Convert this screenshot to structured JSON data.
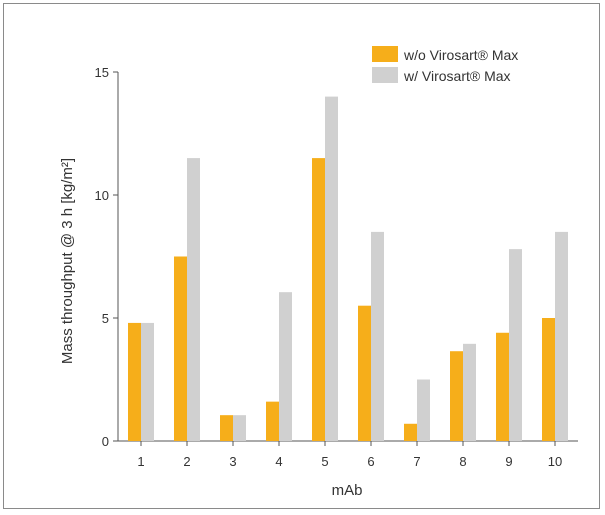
{
  "chart_data": {
    "type": "bar",
    "title": "",
    "xlabel": "mAb",
    "ylabel": "Mass throughput @ 3 h [kg/m²]",
    "categories": [
      "1",
      "2",
      "3",
      "4",
      "5",
      "6",
      "7",
      "8",
      "9",
      "10"
    ],
    "ylim": [
      0,
      15
    ],
    "yticks": [
      "0",
      "5",
      "10",
      "15"
    ],
    "grid": false,
    "legend_position": "top-right",
    "series": [
      {
        "name": "w/o Virosart® Max",
        "color": "#f6ae1a",
        "values": [
          4.8,
          7.5,
          1.05,
          1.6,
          11.5,
          5.5,
          0.7,
          3.65,
          4.4,
          5.0
        ]
      },
      {
        "name": "w/ Virosart® Max",
        "color": "#d0d0d0",
        "values": [
          4.8,
          11.5,
          1.05,
          6.05,
          14.0,
          8.5,
          2.5,
          3.95,
          7.8,
          8.5
        ]
      }
    ]
  }
}
